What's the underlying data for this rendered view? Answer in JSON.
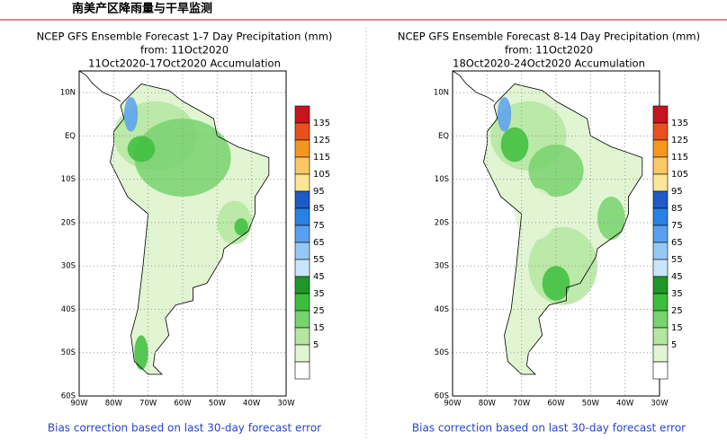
{
  "header": {
    "title": "南美产区降雨量与干旱监测"
  },
  "panels": [
    {
      "title_lines": [
        "NCEP GFS Ensemble Forecast 1-7 Day Precipitation (mm)",
        "from: 11Oct2020",
        "11Oct2020-17Oct2020 Accumulation"
      ],
      "lat_labels": [
        "10N",
        "EQ",
        "10S",
        "20S",
        "30S",
        "40S",
        "50S",
        "60S"
      ],
      "lon_labels": [
        "90W",
        "80W",
        "70W",
        "60W",
        "50W",
        "40W",
        "30W"
      ],
      "footer": "Bias correction based on last 30-day forecast error"
    },
    {
      "title_lines": [
        "NCEP GFS Ensemble Forecast 8-14 Day Precipitation (mm)",
        "from: 11Oct2020",
        "18Oct2020-24Oct2020 Accumulation"
      ],
      "lat_labels": [
        "10N",
        "EQ",
        "10S",
        "20S",
        "30S",
        "40S",
        "50S",
        "60S"
      ],
      "lon_labels": [
        "90W",
        "80W",
        "70W",
        "60W",
        "50W",
        "40W",
        "30W"
      ],
      "footer": "Bias correction based on last 30-day forecast error"
    }
  ],
  "colorbar": {
    "levels": [
      135,
      125,
      115,
      105,
      95,
      85,
      75,
      65,
      55,
      45,
      35,
      25,
      15,
      5
    ],
    "colors": [
      "#c8141e",
      "#e8501e",
      "#f5961e",
      "#fac864",
      "#fae696",
      "#1e5ac8",
      "#2882e6",
      "#5aa0f0",
      "#96c8f5",
      "#c8e6fa",
      "#1e9628",
      "#3cbe3c",
      "#78d26e",
      "#b4e6a0",
      "#e1f5d2",
      "#ffffff"
    ]
  }
}
